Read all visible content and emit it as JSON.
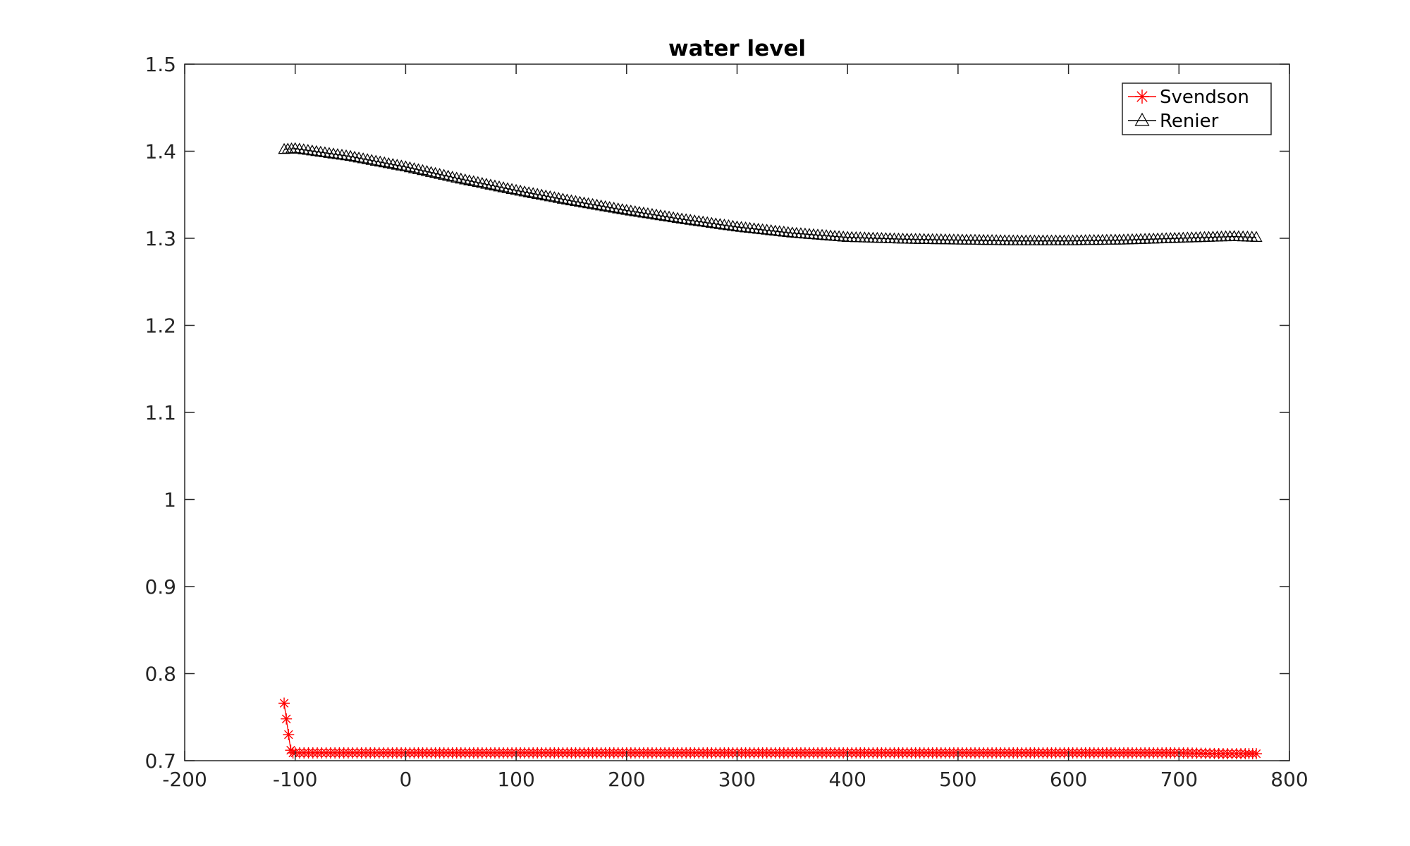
{
  "chart_data": {
    "type": "line",
    "title": "water level",
    "xlabel": "",
    "ylabel": "",
    "xlim": [
      -200,
      800
    ],
    "ylim": [
      0.7,
      1.5
    ],
    "xticks": [
      "-200",
      "-100",
      "0",
      "100",
      "200",
      "300",
      "400",
      "500",
      "600",
      "700",
      "800"
    ],
    "yticks": [
      "0.7",
      "0.8",
      "0.9",
      "1",
      "1.1",
      "1.2",
      "1.3",
      "1.4",
      "1.5"
    ],
    "grid": false,
    "legend_position": "top-right",
    "colors": {
      "Svendson": "#ff0000",
      "Renier": "#000000",
      "axis": "#262626"
    },
    "series": [
      {
        "name": "Svendson",
        "marker": "asterisk",
        "color": "#ff0000",
        "x": [
          -110,
          -108,
          -106,
          -104,
          -102,
          -100,
          -80,
          -60,
          -40,
          -20,
          0,
          50,
          100,
          150,
          200,
          250,
          300,
          350,
          400,
          450,
          500,
          550,
          600,
          650,
          700,
          740,
          760,
          770
        ],
        "y": [
          0.766,
          0.748,
          0.73,
          0.712,
          0.709,
          0.709,
          0.709,
          0.709,
          0.709,
          0.709,
          0.709,
          0.709,
          0.709,
          0.709,
          0.709,
          0.709,
          0.709,
          0.709,
          0.709,
          0.709,
          0.709,
          0.709,
          0.709,
          0.709,
          0.709,
          0.708,
          0.708,
          0.708
        ]
      },
      {
        "name": "Renier",
        "marker": "triangle",
        "color": "#000000",
        "x": [
          -110,
          -100,
          -50,
          0,
          50,
          100,
          150,
          200,
          250,
          300,
          350,
          400,
          450,
          500,
          550,
          600,
          650,
          700,
          750,
          770
        ],
        "y": [
          1.402,
          1.403,
          1.394,
          1.382,
          1.368,
          1.355,
          1.343,
          1.332,
          1.322,
          1.313,
          1.306,
          1.301,
          1.299,
          1.298,
          1.297,
          1.297,
          1.298,
          1.3,
          1.302,
          1.301
        ]
      }
    ]
  }
}
